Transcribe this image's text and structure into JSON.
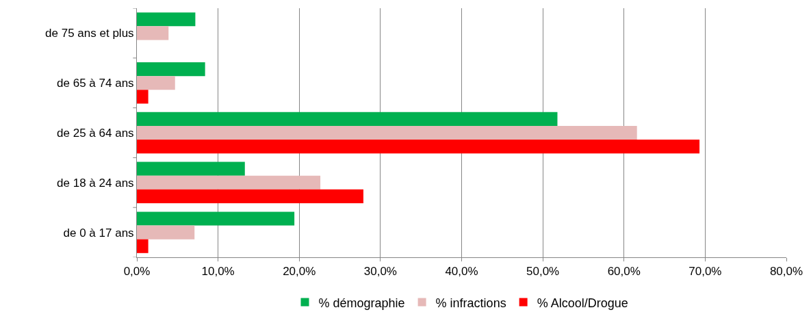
{
  "chart_data": {
    "type": "bar",
    "orientation": "horizontal",
    "categories": [
      "de 75 ans et plus",
      "de 65 à 74 ans",
      "de 25 à 64 ans",
      "de 18 à 24 ans",
      "de 0 à 17 ans"
    ],
    "series": [
      {
        "name": "% démographie",
        "color": "#00b050",
        "values": [
          7.2,
          8.4,
          51.8,
          13.3,
          19.4
        ]
      },
      {
        "name": "% infractions",
        "color": "#e6b9b8",
        "values": [
          3.9,
          4.7,
          61.6,
          22.6,
          7.1
        ]
      },
      {
        "name": "% Alcool/Drogue",
        "color": "#ff0000",
        "values": [
          null,
          1.4,
          69.3,
          27.9,
          1.4
        ]
      }
    ],
    "xlim": [
      0,
      80
    ],
    "xticks": [
      {
        "value": 0,
        "label": "0,0%"
      },
      {
        "value": 10,
        "label": "10,0%"
      },
      {
        "value": 20,
        "label": "20,0%"
      },
      {
        "value": 30,
        "label": "30,0%"
      },
      {
        "value": 40,
        "label": "40,0%"
      },
      {
        "value": 50,
        "label": "50,0%"
      },
      {
        "value": 60,
        "label": "60,0%"
      },
      {
        "value": 70,
        "label": "70,0%"
      },
      {
        "value": 80,
        "label": "80,0%"
      }
    ],
    "grid": "x",
    "legend": "bottom"
  }
}
